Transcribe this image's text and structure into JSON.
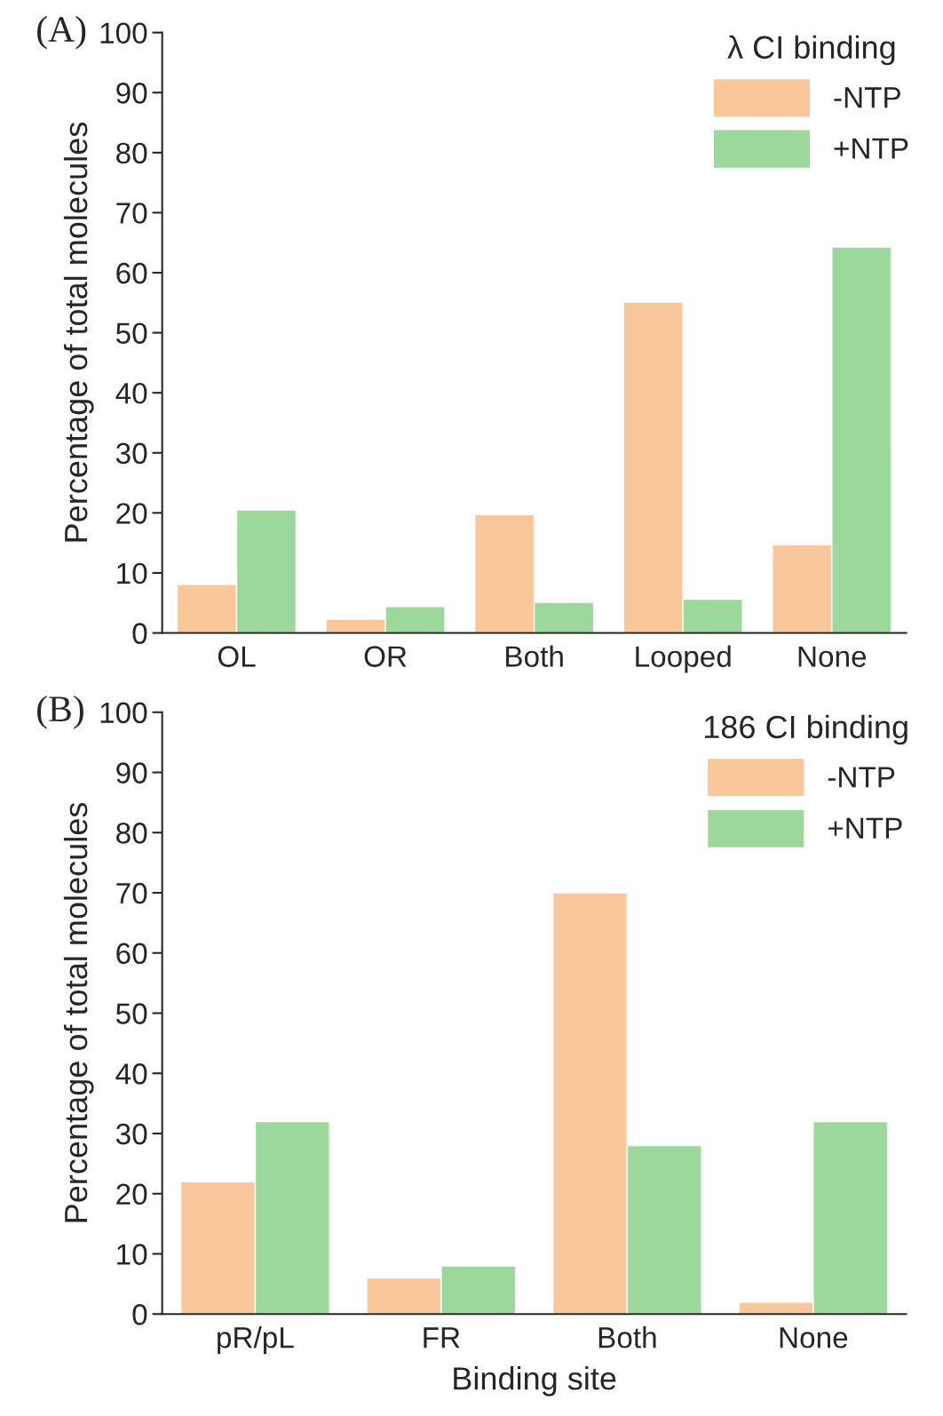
{
  "chart_data": [
    {
      "type": "bar",
      "annotations": [
        "(A)"
      ],
      "ylabel": "Percentage of total molecules",
      "legend_title": "λ CI binding",
      "legend": "top right",
      "grid": false,
      "categories": [
        "OL",
        "OR",
        "Both",
        "Looped",
        "None"
      ],
      "series": [
        {
          "name": "-NTP",
          "color": "#f9c799",
          "values": [
            8.1,
            2.3,
            19.7,
            55.1,
            14.7
          ]
        },
        {
          "name": "+NTP",
          "color": "#9cd89c",
          "values": [
            20.5,
            4.4,
            5.1,
            5.6,
            64.3
          ]
        }
      ],
      "ylim": [
        0,
        100
      ],
      "yticks": [
        0,
        10,
        20,
        30,
        40,
        50,
        60,
        70,
        80,
        90,
        100
      ]
    },
    {
      "type": "bar",
      "annotations": [
        "(B)"
      ],
      "xlabel": "Binding site",
      "ylabel": "Percentage of total molecules",
      "legend_title": "186 CI binding",
      "legend": "top right",
      "grid": false,
      "categories": [
        "pR/pL",
        "FR",
        "Both",
        "None"
      ],
      "series": [
        {
          "name": "-NTP",
          "color": "#f9c799",
          "values": [
            22,
            6,
            70,
            2
          ]
        },
        {
          "name": "+NTP",
          "color": "#9cd89c",
          "values": [
            32,
            8,
            28,
            32
          ]
        }
      ],
      "ylim": [
        0,
        100
      ],
      "yticks": [
        0,
        10,
        20,
        30,
        40,
        50,
        60,
        70,
        80,
        90,
        100
      ]
    }
  ]
}
